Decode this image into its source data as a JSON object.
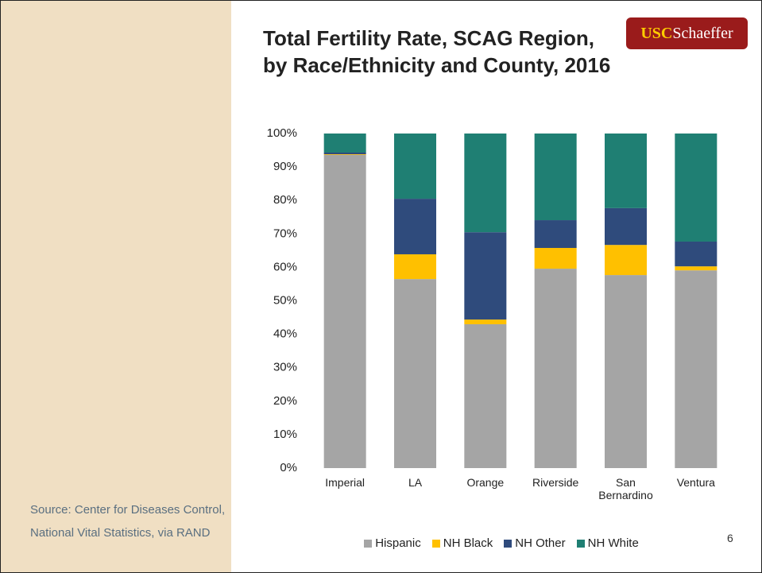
{
  "logo": {
    "usc": "USC",
    "name": "Schaeffer"
  },
  "source": "Source: Center for Diseases Control, National Vital Statistics, via RAND",
  "page_number": "6",
  "chart_data": {
    "type": "stacked_bar",
    "title": "Total Fertility Rate, SCAG Region, by Race/Ethnicity and County, 2016",
    "categories": [
      "Imperial",
      "LA",
      "Orange",
      "Riverside",
      "San Bernardino",
      "Ventura"
    ],
    "series": [
      {
        "name": "Hispanic",
        "color": "#a5a5a5",
        "values": [
          93.6,
          56.5,
          43.0,
          59.6,
          57.7,
          59.1
        ]
      },
      {
        "name": "NH Black",
        "color": "#ffc000",
        "values": [
          0.2,
          7.4,
          1.4,
          6.2,
          9.0,
          1.2
        ]
      },
      {
        "name": "NH Other",
        "color": "#2f4b7c",
        "values": [
          0.5,
          16.6,
          26.1,
          8.3,
          11.0,
          7.4
        ]
      },
      {
        "name": "NH White",
        "color": "#1f7f73",
        "values": [
          5.7,
          19.5,
          29.5,
          25.9,
          22.3,
          32.3
        ]
      }
    ],
    "ylim": [
      0,
      100
    ],
    "yticks": [
      {
        "value": 0,
        "label": "0%"
      },
      {
        "value": 10,
        "label": "10%"
      },
      {
        "value": 20,
        "label": "20%"
      },
      {
        "value": 30,
        "label": "30%"
      },
      {
        "value": 40,
        "label": "40%"
      },
      {
        "value": 50,
        "label": "50%"
      },
      {
        "value": 60,
        "label": "60%"
      },
      {
        "value": 70,
        "label": "70%"
      },
      {
        "value": 80,
        "label": "80%"
      },
      {
        "value": 90,
        "label": "90%"
      },
      {
        "value": 100,
        "label": "100%"
      }
    ],
    "legend": "bottom"
  }
}
